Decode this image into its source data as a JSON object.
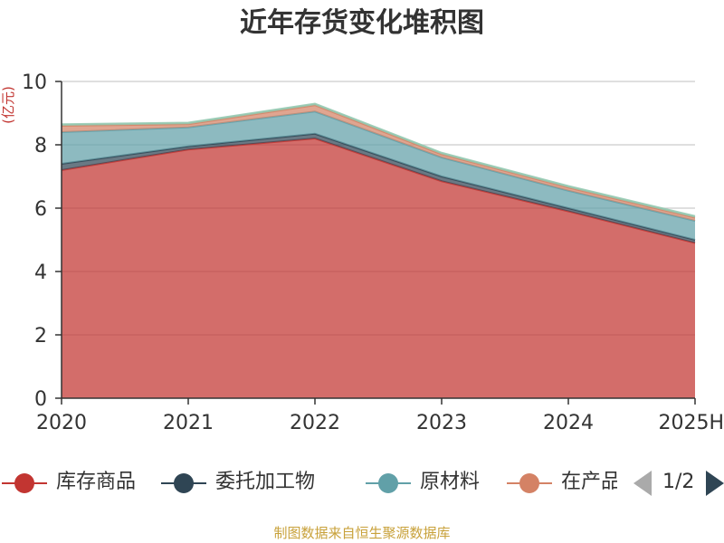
{
  "chart_data": {
    "type": "area",
    "stacked": true,
    "title": "近年存货变化堆积图",
    "ylabel": "(亿元)",
    "xlabel": "",
    "categories": [
      "2020",
      "2021",
      "2022",
      "2023",
      "2024",
      "2025H"
    ],
    "ylim": [
      0,
      10
    ],
    "yticks": [
      0,
      2,
      4,
      6,
      8,
      10
    ],
    "grid": true,
    "series": [
      {
        "name": "库存商品",
        "color": "#c23531",
        "values": [
          7.2,
          7.85,
          8.2,
          6.85,
          5.9,
          4.9
        ]
      },
      {
        "name": "委托加工物资",
        "color": "#2f4554",
        "values": [
          0.2,
          0.1,
          0.15,
          0.15,
          0.1,
          0.1
        ]
      },
      {
        "name": "原材料",
        "color": "#61a0a8",
        "values": [
          1.0,
          0.6,
          0.7,
          0.6,
          0.55,
          0.6
        ]
      },
      {
        "name": "在产品",
        "color": "#d48265",
        "values": [
          0.2,
          0.1,
          0.2,
          0.1,
          0.1,
          0.1
        ]
      },
      {
        "name": "",
        "color": "#91c7ae",
        "values": [
          0.05,
          0.05,
          0.05,
          0.05,
          0.05,
          0.05
        ]
      }
    ],
    "legend": {
      "position": "bottom",
      "page": "1/2"
    }
  },
  "source_note": "制图数据来自恒生聚源数据库"
}
